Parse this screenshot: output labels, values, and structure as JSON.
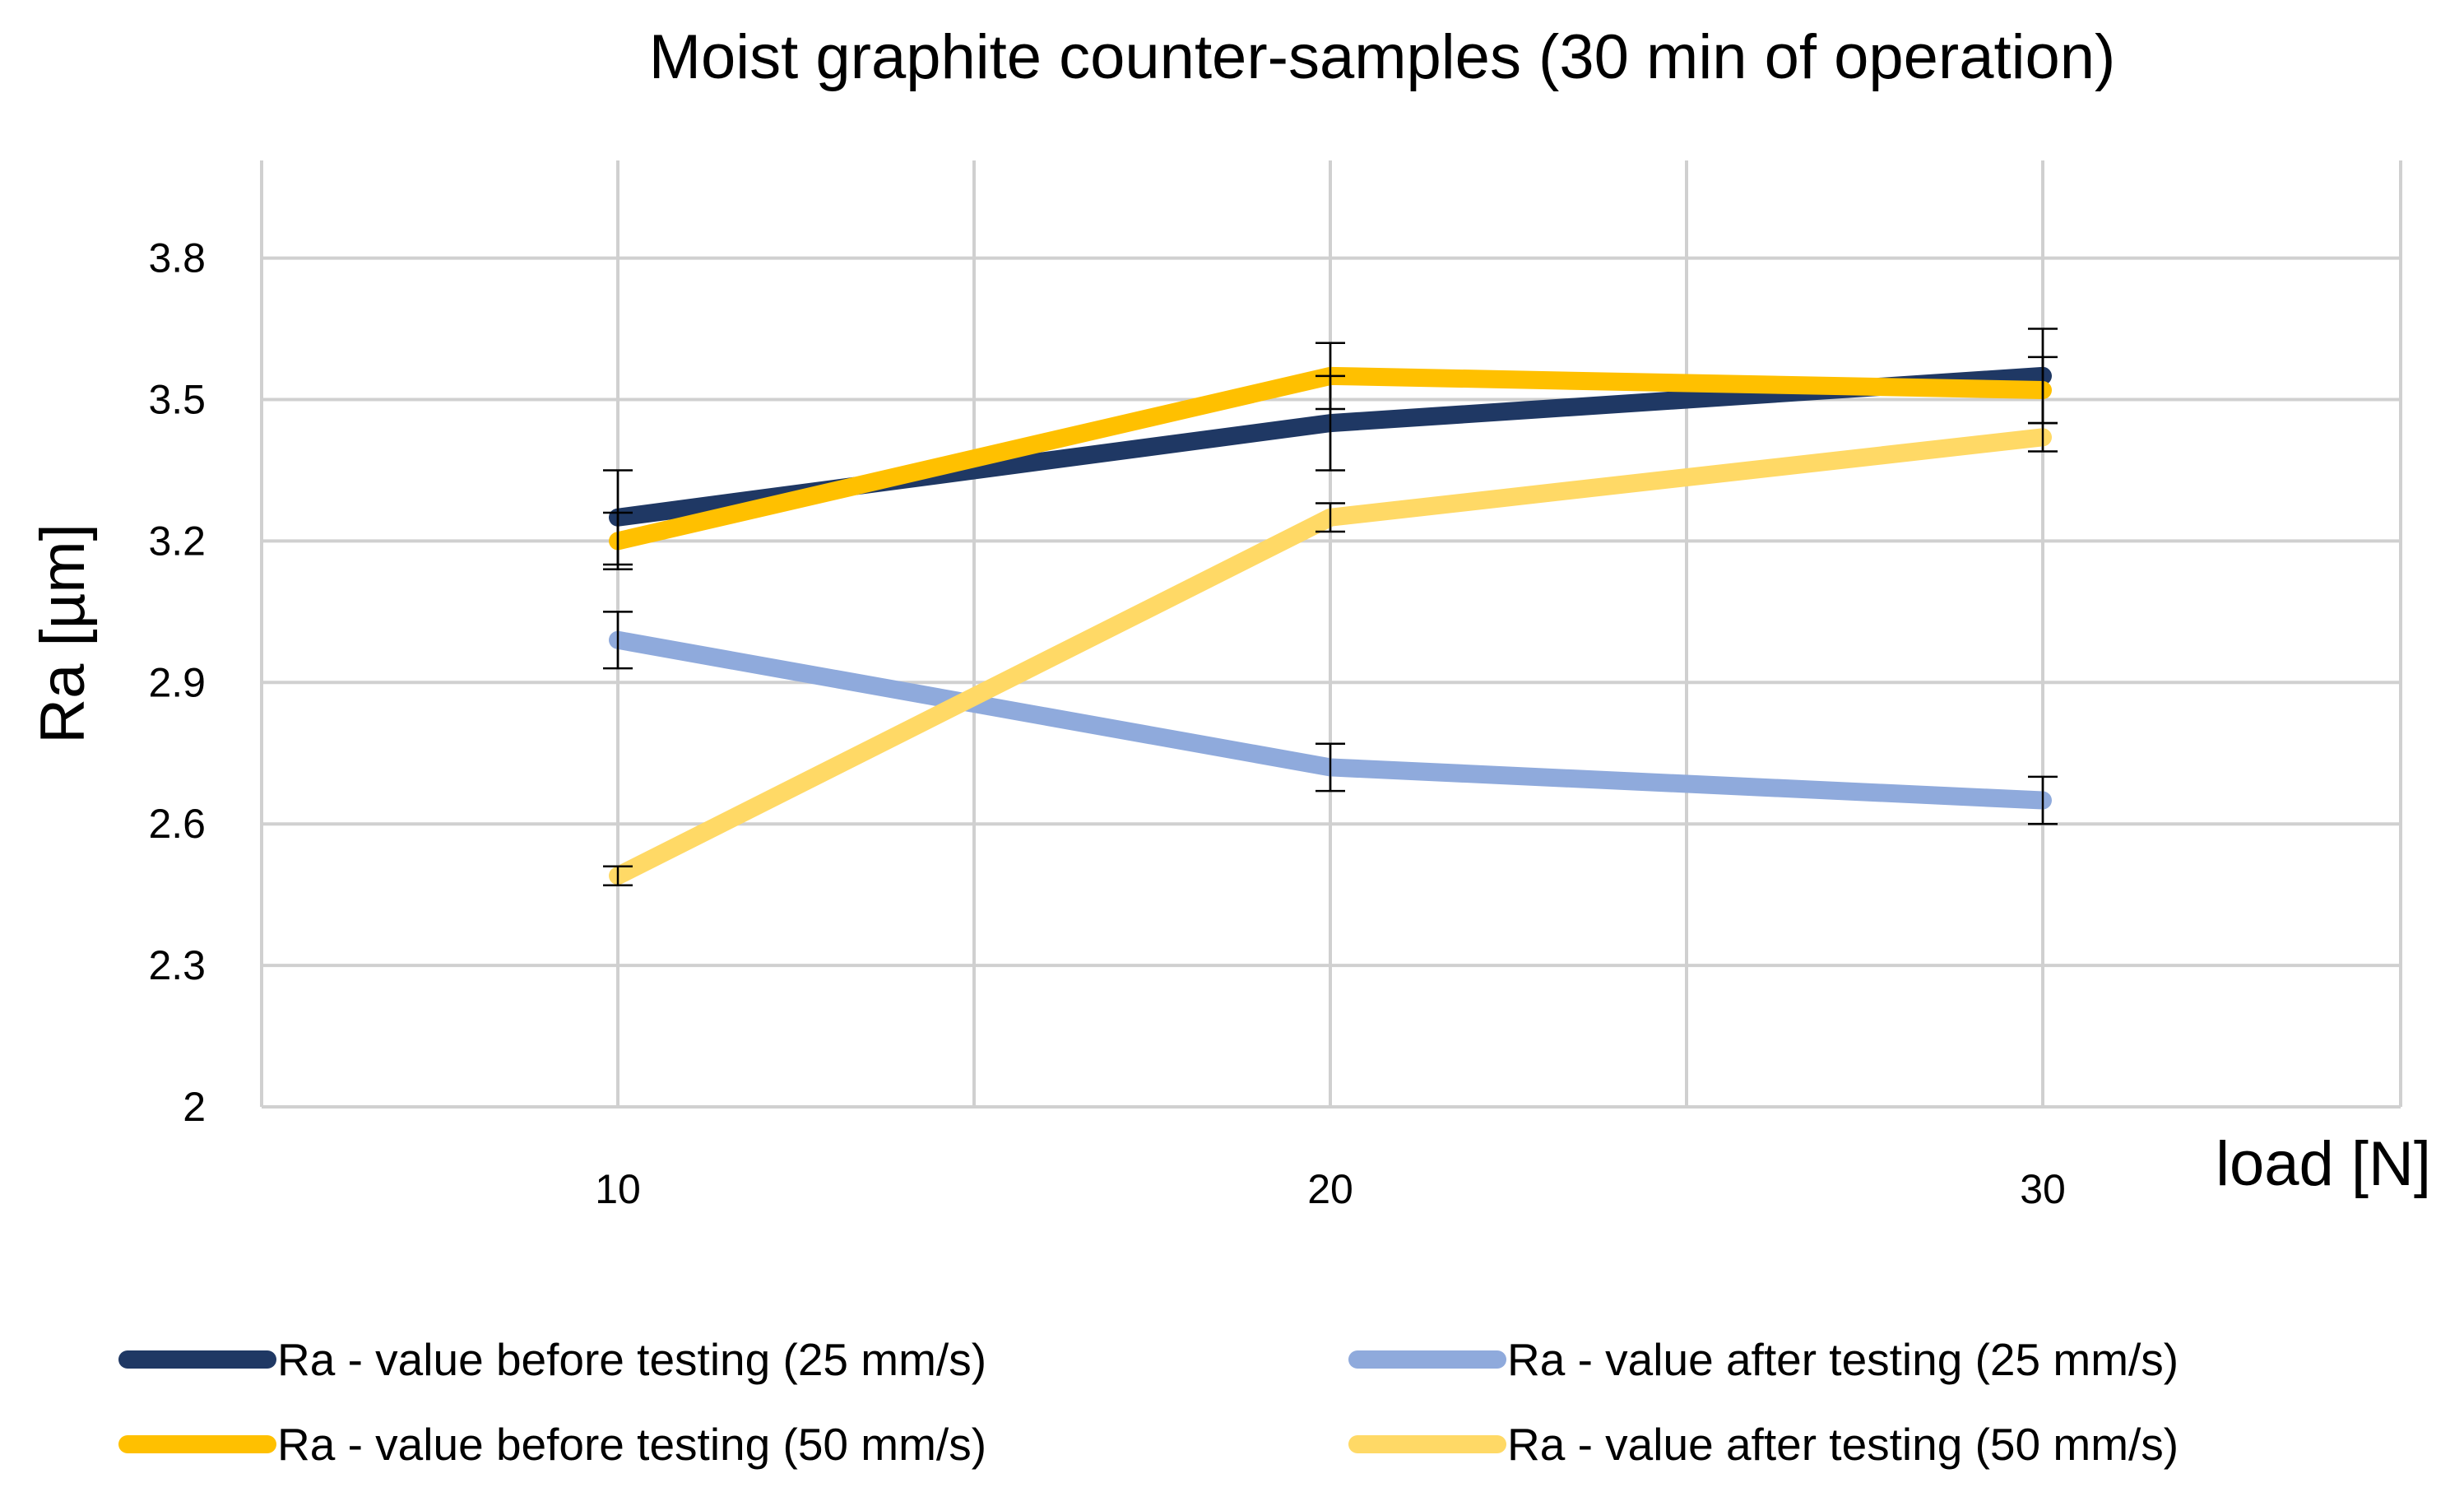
{
  "chart_data": {
    "type": "line",
    "title": "Moist graphite counter-samples (30 min of operation)",
    "xlabel": "load [N]",
    "ylabel": "Ra [µm]",
    "categories": [
      "10",
      "20",
      "30"
    ],
    "ylim": [
      2,
      4
    ],
    "yticks": [
      2,
      2.3,
      2.6,
      2.9,
      3.2,
      3.5,
      3.8
    ],
    "ytick_labels": [
      "2",
      "2.3",
      "2.6",
      "2.9",
      "3.2",
      "3.5",
      "3.8"
    ],
    "grid": true,
    "legend_position": "bottom",
    "series": [
      {
        "name": "Ra - value before testing (25 mm/s)",
        "color": "#1f3864",
        "values": [
          3.25,
          3.45,
          3.55
        ],
        "errors": [
          0.1,
          0.1,
          0.1
        ]
      },
      {
        "name": "Ra - value after testing (25 mm/s)",
        "color": "#8faadc",
        "values": [
          2.99,
          2.72,
          2.65
        ],
        "errors": [
          0.06,
          0.05,
          0.05
        ]
      },
      {
        "name": "Ra - value before testing (50 mm/s)",
        "color": "#ffc000",
        "values": [
          3.2,
          3.55,
          3.52
        ],
        "errors": [
          0.06,
          0.07,
          0.07
        ]
      },
      {
        "name": "Ra - value after testing (50 mm/s)",
        "color": "#ffd966",
        "values": [
          2.49,
          3.25,
          3.42
        ],
        "errors": [
          0.02,
          0.03,
          0.03
        ]
      }
    ]
  }
}
